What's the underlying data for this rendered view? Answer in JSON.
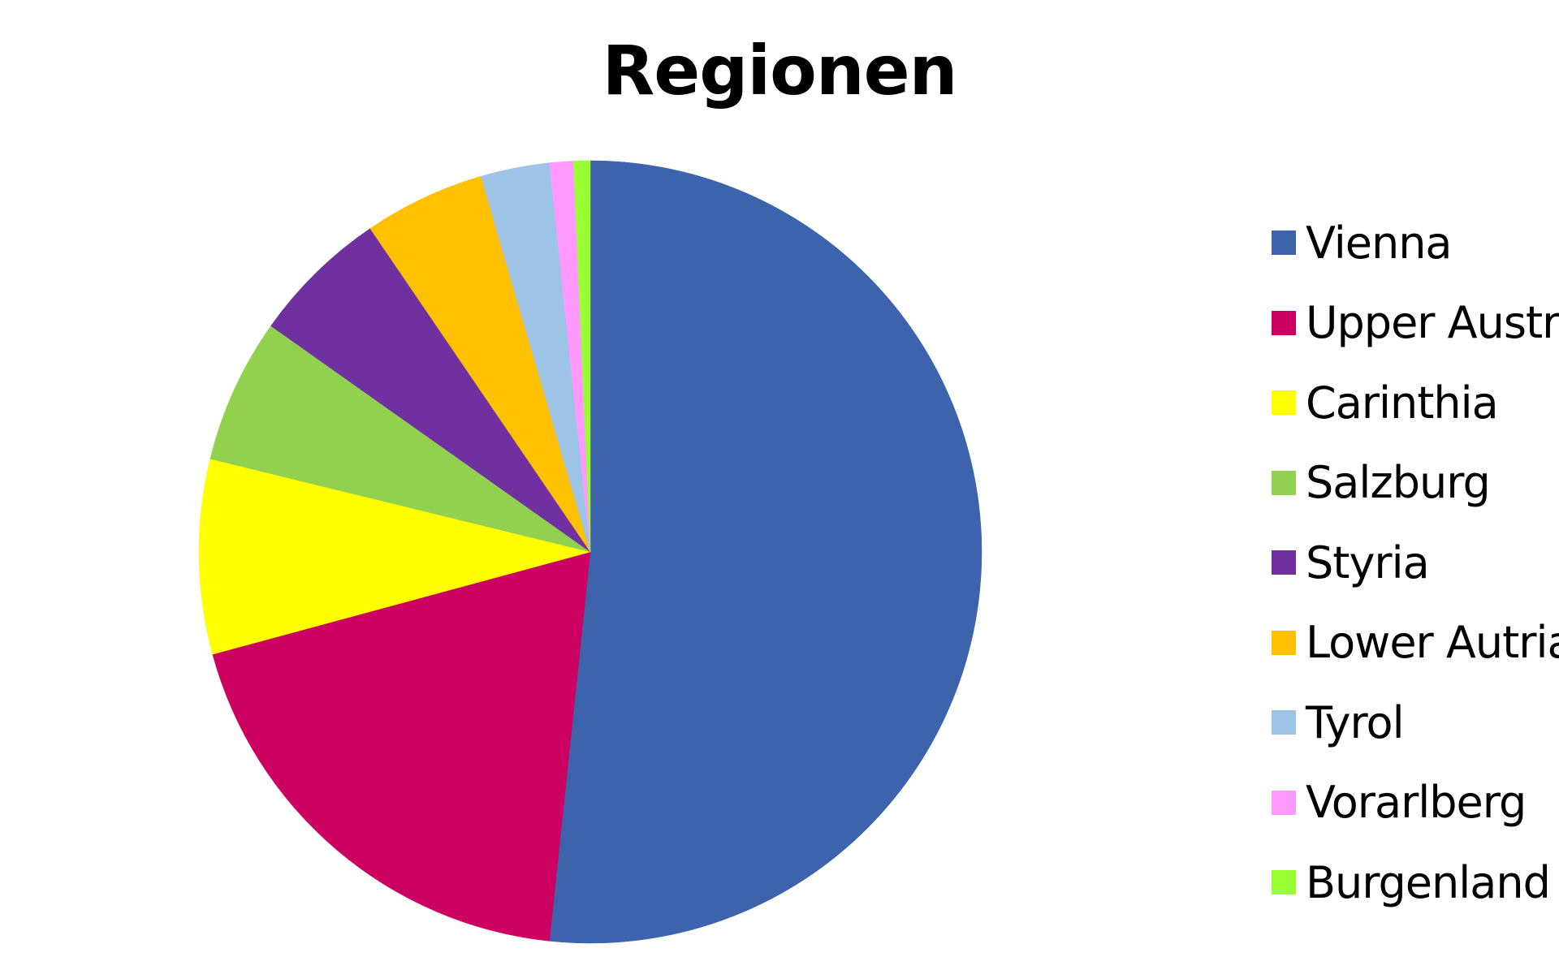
{
  "chart_data": {
    "type": "pie",
    "title": "Regionen",
    "legend_position": "right",
    "start_angle_deg": 0,
    "direction": "clockwise",
    "slices": [
      {
        "label": "Vienna",
        "value": 52.7,
        "color": "#3C63AC"
      },
      {
        "label": "Upper Austria",
        "value": 19.5,
        "color": "#CC0060"
      },
      {
        "label": "Carinthia",
        "value": 8.2,
        "color": "#FFFF00"
      },
      {
        "label": "Salzburg",
        "value": 6.1,
        "color": "#92D050"
      },
      {
        "label": "Styria",
        "value": 5.8,
        "color": "#7030A0"
      },
      {
        "label": "Lower Autria",
        "value": 5.1,
        "color": "#FFC000"
      },
      {
        "label": "Tyrol",
        "value": 2.9,
        "color": "#9DC3E6"
      },
      {
        "label": "Vorarlberg",
        "value": 1.0,
        "color": "#FF99FF"
      },
      {
        "label": "Burgenland",
        "value": 0.7,
        "color": "#99FF33"
      }
    ]
  }
}
